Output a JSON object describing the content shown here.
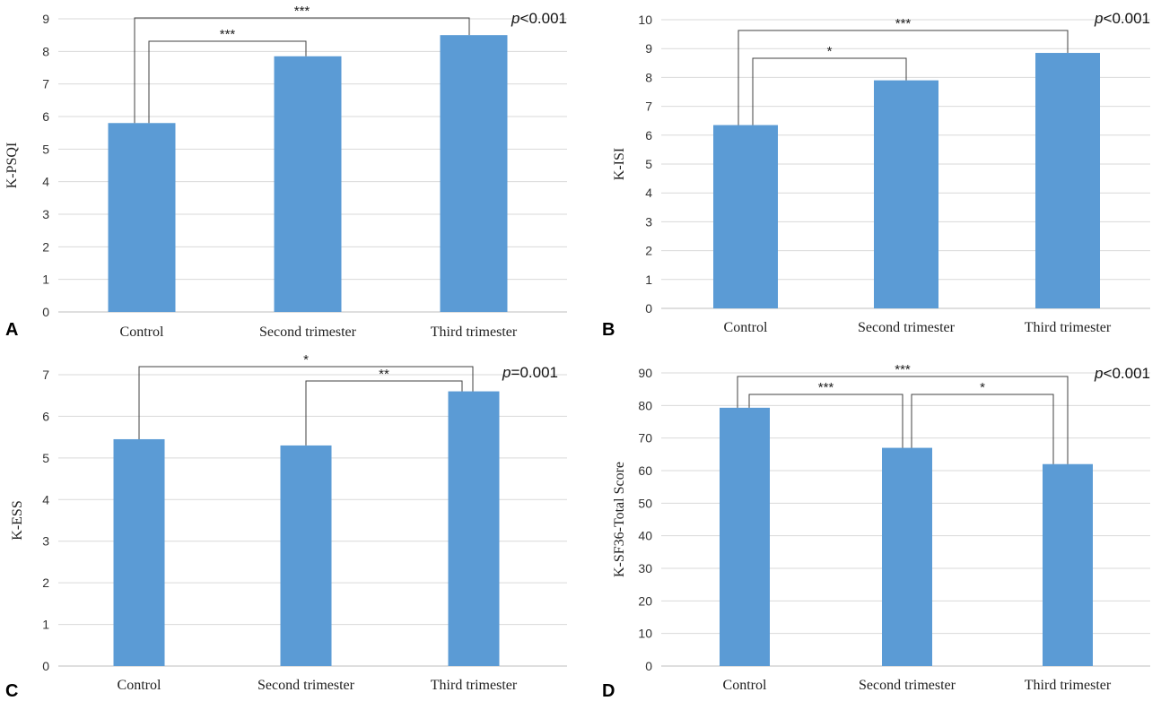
{
  "chart_data": [
    {
      "panel": "A",
      "type": "bar",
      "categories": [
        "Control",
        "Second trimester",
        "Third trimester"
      ],
      "values": [
        5.8,
        7.85,
        8.5
      ],
      "ylabel": "K-PSQI",
      "ylim": [
        0,
        9
      ],
      "yticks": [
        0,
        1,
        2,
        3,
        4,
        5,
        6,
        7,
        8,
        9
      ],
      "pvalue": {
        "p": "p",
        "rest": "<0.001"
      },
      "annotations": [
        {
          "from": 0,
          "to": 2,
          "label": "***"
        },
        {
          "from": 0,
          "to": 1,
          "label": "***"
        }
      ]
    },
    {
      "panel": "B",
      "type": "bar",
      "categories": [
        "Control",
        "Second trimester",
        "Third trimester"
      ],
      "values": [
        6.35,
        7.9,
        8.85
      ],
      "ylabel": "K-ISI",
      "ylim": [
        0,
        10
      ],
      "yticks": [
        0,
        1,
        2,
        3,
        4,
        5,
        6,
        7,
        8,
        9,
        10
      ],
      "pvalue": {
        "p": "p",
        "rest": "<0.001"
      },
      "annotations": [
        {
          "from": 0,
          "to": 2,
          "label": "***"
        },
        {
          "from": 0,
          "to": 1,
          "label": "*"
        }
      ]
    },
    {
      "panel": "C",
      "type": "bar",
      "categories": [
        "Control",
        "Second trimester",
        "Third trimester"
      ],
      "values": [
        5.45,
        5.3,
        6.6
      ],
      "ylabel": "K-ESS",
      "ylim": [
        0,
        7
      ],
      "yticks": [
        0,
        1,
        2,
        3,
        4,
        5,
        6,
        7
      ],
      "pvalue": {
        "p": "p",
        "rest": "=0.001"
      },
      "annotations": [
        {
          "from": 0,
          "to": 2,
          "label": "*"
        },
        {
          "from": 1,
          "to": 2,
          "label": "**"
        }
      ]
    },
    {
      "panel": "D",
      "type": "bar",
      "categories": [
        "Control",
        "Second trimester",
        "Third trimester"
      ],
      "values": [
        79.3,
        67,
        62
      ],
      "ylabel": "K-SF36-Total Score",
      "ylim": [
        0,
        90
      ],
      "yticks": [
        0,
        10,
        20,
        30,
        40,
        50,
        60,
        70,
        80,
        90
      ],
      "pvalue": {
        "p": "p",
        "rest": "<0.001"
      },
      "annotations": [
        {
          "from": 0,
          "to": 2,
          "label": "***"
        },
        {
          "from": 0,
          "to": 1,
          "label": "***"
        },
        {
          "from": 1,
          "to": 2,
          "label": "*"
        }
      ]
    }
  ],
  "colors": {
    "bar": "#5b9bd5",
    "grid": "#d9d9d9",
    "bracket": "#404040"
  }
}
